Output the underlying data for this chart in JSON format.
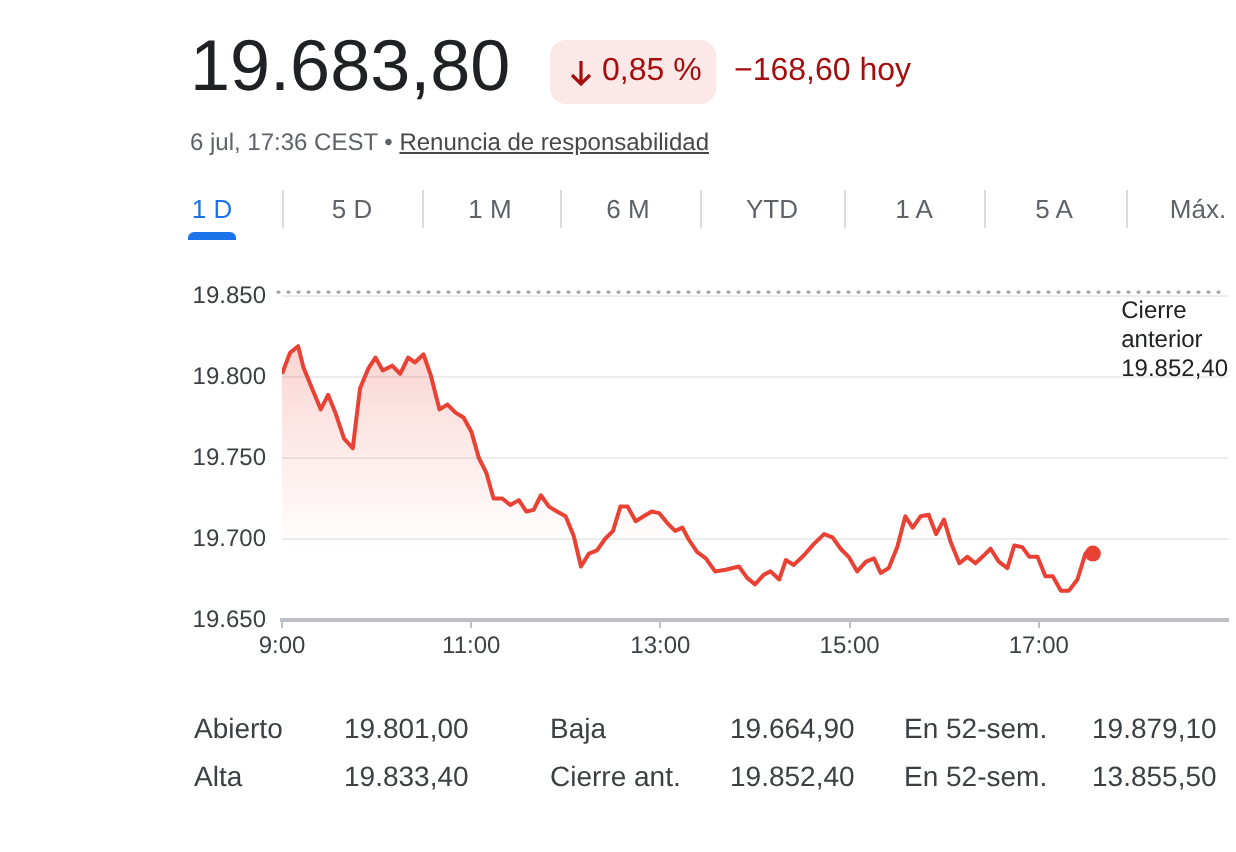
{
  "chart_data": {
    "type": "area",
    "title": "19.683,80",
    "subtitle": "6 jul, 17:36 CEST •",
    "annotations": [
      "0,85 %",
      "−168,60 hoy",
      "Renuncia de responsabilidad",
      "1 D",
      "5 D",
      "1 M",
      "6 M",
      "YTD",
      "1 A",
      "5 A",
      "Máx.",
      "Abierto",
      "19.801,00",
      "Baja",
      "19.664,90",
      "En 52-sem.",
      "19.879,10",
      "Alta",
      "19.833,40",
      "Cierre ant.",
      "19.852,40",
      "En 52-sem.",
      "13.855,50"
    ],
    "x": [
      9,
      9.085,
      9.17,
      9.226,
      9.317,
      9.41,
      9.487,
      9.564,
      9.656,
      9.748,
      9.825,
      9.91,
      9.988,
      10.065,
      10.164,
      10.249,
      10.333,
      10.404,
      10.496,
      10.573,
      10.665,
      10.75,
      10.834,
      10.919,
      11.003,
      11.081,
      11.159,
      11.236,
      11.328,
      11.413,
      11.504,
      11.582,
      11.66,
      11.737,
      11.822,
      11.907,
      11.998,
      12.083,
      12.16,
      12.245,
      12.33,
      12.414,
      12.499,
      12.577,
      12.654,
      12.739,
      12.823,
      12.908,
      12.986,
      13.071,
      13.155,
      13.233,
      13.296,
      13.387,
      13.48,
      13.578,
      13.69,
      13.83,
      13.917,
      14.0,
      14.094,
      14.164,
      14.256,
      14.326,
      14.41,
      14.517,
      14.623,
      14.73,
      14.82,
      14.905,
      14.99,
      15.08,
      15.174,
      15.258,
      15.328,
      15.413,
      15.504,
      15.589,
      15.667,
      15.75,
      15.836,
      15.914,
      15.998,
      16.069,
      16.16,
      16.245,
      16.33,
      16.422,
      16.49,
      16.577,
      16.668,
      16.74,
      16.825,
      16.9,
      16.986,
      17.07,
      17.148,
      17.233,
      17.317,
      17.408,
      17.493,
      17.571
    ],
    "values": [
      19802,
      19815,
      19819,
      19806,
      19793,
      19780,
      19789,
      19778,
      19762,
      19756,
      19793,
      19805,
      19812,
      19804,
      19807,
      19802,
      19812,
      19809,
      19814,
      19801,
      19780,
      19783,
      19778,
      19775,
      19766,
      19750,
      19741,
      19725,
      19725,
      19721,
      19724,
      19717,
      19718,
      19727,
      19720,
      19717,
      19714,
      19702,
      19683,
      19691,
      19693,
      19700,
      19705,
      19720,
      19720,
      19711,
      19714,
      19717,
      19716,
      19710,
      19705,
      19707,
      19700,
      19692,
      19688,
      19680,
      19681,
      19683,
      19676,
      19672,
      19678,
      19680,
      19675,
      19687,
      19684,
      19690,
      19697,
      19703,
      19701,
      19694,
      19689,
      19680,
      19686,
      19688,
      19679,
      19682,
      19695,
      19714,
      19707,
      19714,
      19715,
      19703,
      19712,
      19698,
      19685,
      19689,
      19685,
      19690,
      19694,
      19686,
      19682,
      19696,
      19695,
      19689,
      19689,
      19677,
      19677,
      19668,
      19668,
      19675,
      19691,
      19691
    ],
    "color": "#e94235",
    "xlim": [
      9,
      19
    ],
    "xticks": [
      {
        "value": 9,
        "label": "9:00"
      },
      {
        "value": 11,
        "label": "11:00"
      },
      {
        "value": 13,
        "label": "13:00"
      },
      {
        "value": 15,
        "label": "15:00"
      },
      {
        "value": 17,
        "label": "17:00"
      }
    ],
    "ylim": [
      19650,
      19850
    ],
    "yticks": [
      {
        "value": 19650,
        "label": "19.650"
      },
      {
        "value": 19700,
        "label": "19.700"
      },
      {
        "value": 19750,
        "label": "19.750"
      },
      {
        "value": 19800,
        "label": "19.800"
      },
      {
        "value": 19850,
        "label": "19.850"
      }
    ],
    "ref_lines": [
      {
        "axis": "y",
        "value": 19852.4,
        "label": "Cierre anterior 19.852,40",
        "color": "#a0a4a8",
        "line_style": "dotted"
      }
    ],
    "grid": "y",
    "legend": false
  }
}
